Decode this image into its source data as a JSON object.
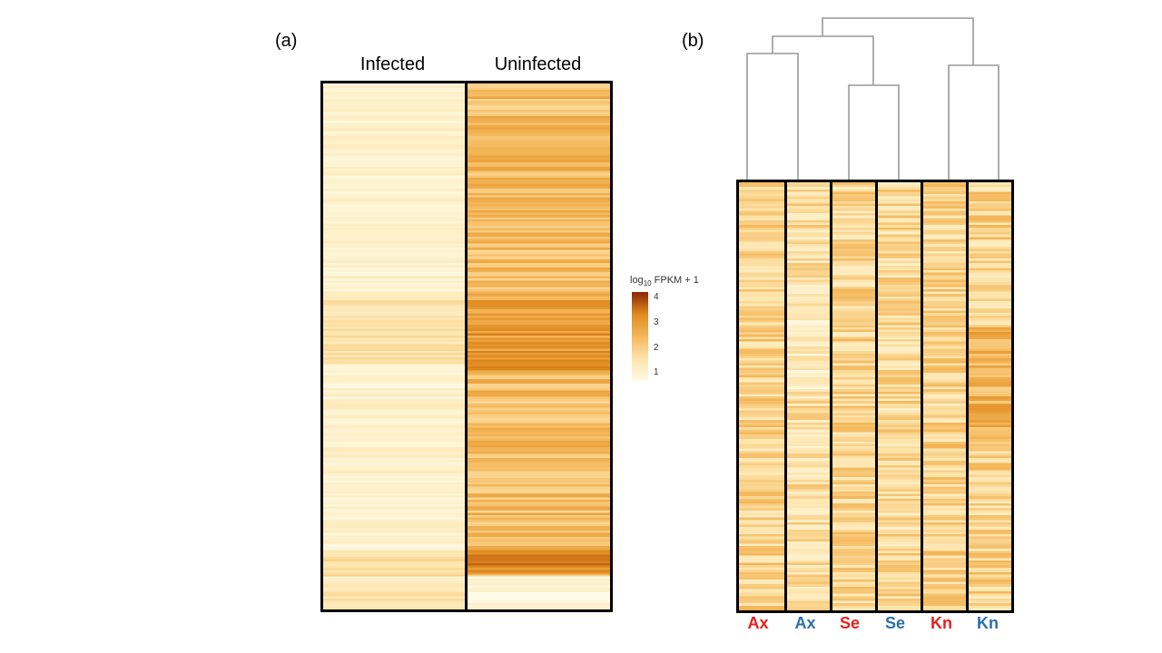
{
  "panel_a": {
    "label": "(a)"
  },
  "panel_b": {
    "label": "(b)"
  },
  "colors": {
    "low": "#fffbe6",
    "mid_low": "#fde4ab",
    "mid": "#f4b75a",
    "mid_high": "#e08a1e",
    "high": "#8b2504",
    "sample_red": "#e8201c",
    "sample_blue": "#2a6fae"
  },
  "chart_data": [
    {
      "type": "heatmap",
      "title": "",
      "columns": [
        "Infected",
        "Uninfected"
      ],
      "column_mean_level": [
        1.3,
        2.4
      ],
      "legend": {
        "title_prefix": "log",
        "title_sub": "10",
        "title_suffix": " FPKM + 1",
        "ticks": [
          "4",
          "3",
          "2",
          "1"
        ],
        "range": [
          1,
          4
        ],
        "placement": "right"
      }
    },
    {
      "type": "heatmap",
      "title": "",
      "columns": [
        "Ax",
        "Ax",
        "Se",
        "Se",
        "Kn",
        "Kn"
      ],
      "column_label_colors": [
        "red",
        "blue",
        "red",
        "blue",
        "red",
        "blue"
      ],
      "column_mean_level": [
        2.0,
        1.8,
        2.0,
        1.9,
        2.0,
        2.0
      ],
      "dendrogram": "columns clustered: ((Ax,Ax),(Se,Se)),(Kn,Kn)"
    }
  ]
}
